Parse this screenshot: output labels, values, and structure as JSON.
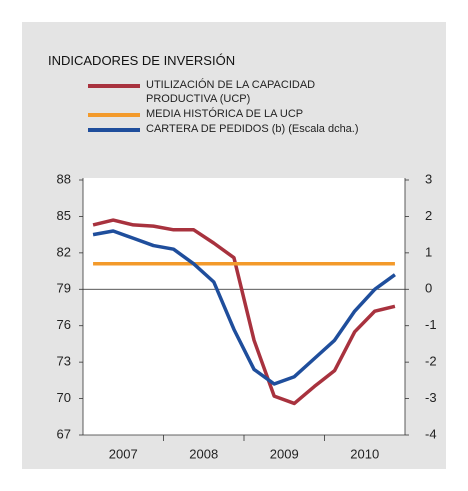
{
  "chart_data": {
    "type": "line",
    "title": "INDICADORES DE INVERSIÓN",
    "x": [
      2007.125,
      2007.375,
      2007.625,
      2007.875,
      2008.125,
      2008.375,
      2008.625,
      2008.875,
      2009.125,
      2009.375,
      2009.625,
      2009.875,
      2010.125,
      2010.375,
      2010.625,
      2010.875
    ],
    "xlim": [
      2007,
      2011
    ],
    "xticks": [
      {
        "value": 2007.5,
        "label": "2007"
      },
      {
        "value": 2008.5,
        "label": "2008"
      },
      {
        "value": 2009.5,
        "label": "2009"
      },
      {
        "value": 2010.5,
        "label": "2010"
      }
    ],
    "xminor": [
      2008,
      2009,
      2010
    ],
    "ylim": [
      67,
      88
    ],
    "yticks": [
      88,
      85,
      82,
      79,
      76,
      73,
      70,
      67
    ],
    "y2lim": [
      -4,
      3
    ],
    "y2ticks": [
      3,
      2,
      1,
      0,
      -1,
      -2,
      -3,
      -4
    ],
    "zero_line": 79,
    "series": [
      {
        "name": "UTILIZACIÓN DE LA CAPACIDAD PRODUCTIVA (UCP)",
        "color": "#a8323e",
        "values": [
          84.3,
          84.7,
          84.3,
          84.2,
          83.9,
          83.9,
          82.8,
          81.6,
          74.8,
          70.2,
          69.6,
          71.0,
          72.3,
          75.5,
          77.2,
          77.6
        ]
      },
      {
        "name": "MEDIA HISTÓRICA DE LA UCP",
        "color": "#f39a2b",
        "values": [
          81.1,
          81.1,
          81.1,
          81.1,
          81.1,
          81.1,
          81.1,
          81.1,
          81.1,
          81.1,
          81.1,
          81.1,
          81.1,
          81.1,
          81.1,
          81.1
        ]
      },
      {
        "name": "CARTERA DE PEDIDOS (b) (Escala dcha.)",
        "color": "#1f4e9c",
        "axis": "y2",
        "values": [
          1.5,
          1.6,
          1.4,
          1.2,
          1.1,
          0.7,
          0.2,
          -1.1,
          -2.2,
          -2.6,
          -2.4,
          -1.9,
          -1.4,
          -0.6,
          0.0,
          0.4
        ]
      }
    ]
  }
}
